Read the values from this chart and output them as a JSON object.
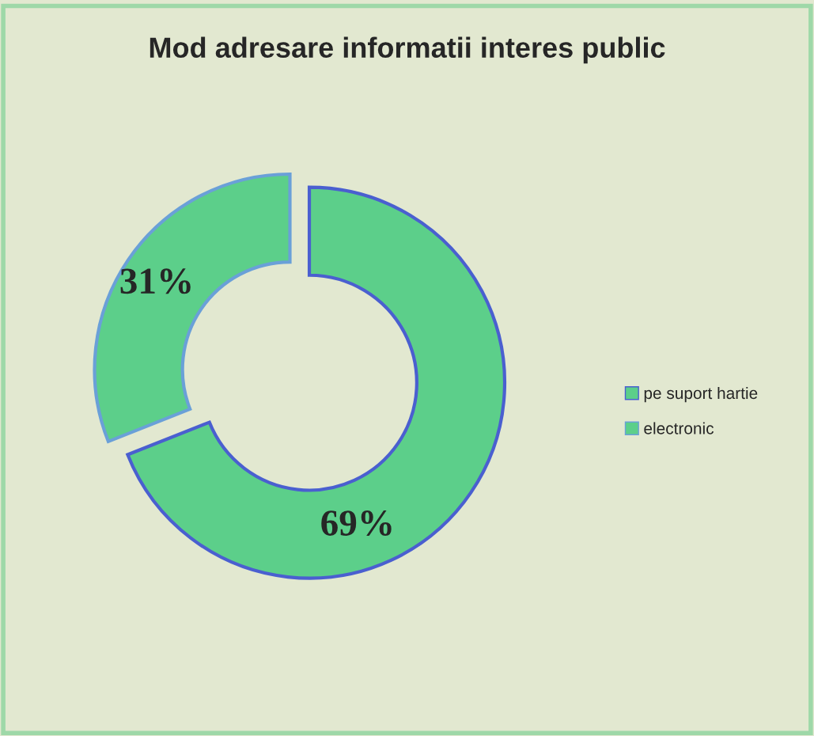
{
  "chart_data": {
    "type": "donut",
    "title": "Mod adresare informatii interes public",
    "categories": [
      "pe suport hartie",
      "electronic"
    ],
    "values": [
      69,
      31
    ],
    "value_labels": [
      "69%",
      "31%"
    ],
    "colors": [
      "#5ccf8a",
      "#5ccf8a"
    ],
    "legend": "right"
  }
}
